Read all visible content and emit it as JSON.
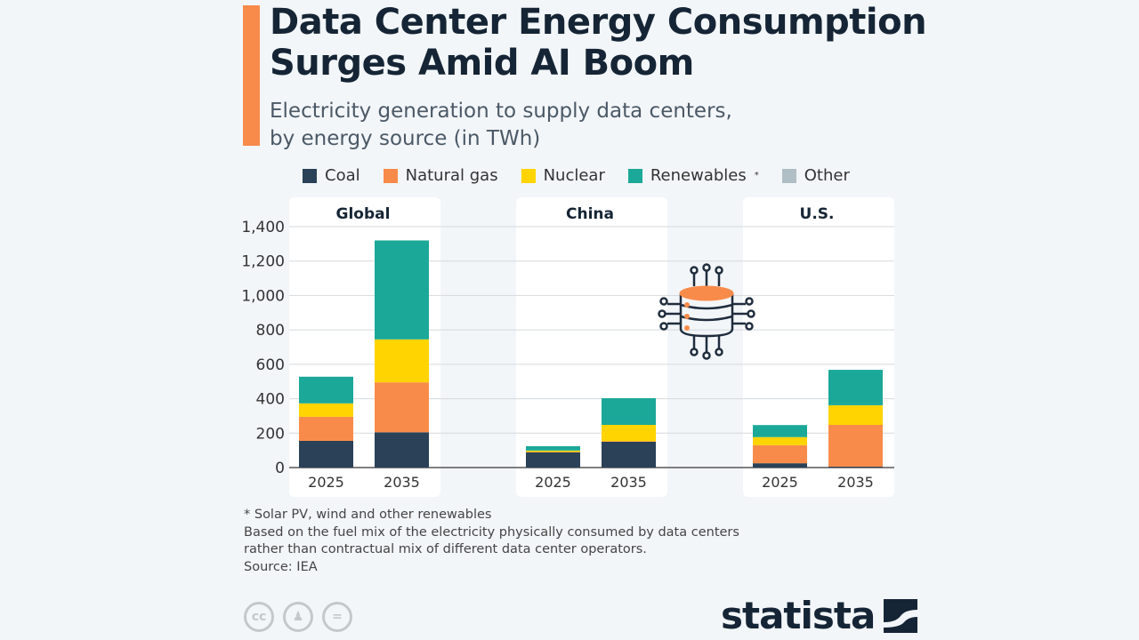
{
  "header": {
    "title_line1": "Data Center Energy Consumption",
    "title_line2": "Surges Amid AI Boom",
    "subtitle_line1": "Electricity generation to supply data centers,",
    "subtitle_line2": "by energy source (in TWh)"
  },
  "chart_data": {
    "type": "bar",
    "stacked": true,
    "title": "Data Center Energy Consumption Surges Amid AI Boom",
    "subtitle": "Electricity generation to supply data centers, by energy source (in TWh)",
    "ylabel": "TWh",
    "ylim": [
      0,
      1400
    ],
    "yticks": [
      0,
      200,
      400,
      600,
      800,
      1000,
      1200,
      1400
    ],
    "ytick_labels": [
      "0",
      "200",
      "400",
      "600",
      "800",
      "1,000",
      "1,200",
      "1,400"
    ],
    "grid": true,
    "legend_position": "top",
    "series_names": [
      "Coal",
      "Natural gas",
      "Nuclear",
      "Renewables",
      "Other"
    ],
    "series_colors": [
      "#2a4158",
      "#f98b4a",
      "#ffd400",
      "#1ba898",
      "#b0bec5"
    ],
    "legend_renewables_mark": "*",
    "panels": [
      {
        "name": "Global",
        "categories": [
          "2025",
          "2035"
        ],
        "series": [
          {
            "name": "Coal",
            "values": [
              155,
              205
            ]
          },
          {
            "name": "Natural gas",
            "values": [
              140,
              290
            ]
          },
          {
            "name": "Nuclear",
            "values": [
              78,
              250
            ]
          },
          {
            "name": "Renewables",
            "values": [
              155,
              575
            ]
          },
          {
            "name": "Other",
            "values": [
              0,
              0
            ]
          }
        ]
      },
      {
        "name": "China",
        "categories": [
          "2025",
          "2035"
        ],
        "series": [
          {
            "name": "Coal",
            "values": [
              88,
              150
            ]
          },
          {
            "name": "Natural gas",
            "values": [
              3,
              3
            ]
          },
          {
            "name": "Nuclear",
            "values": [
              8,
              95
            ]
          },
          {
            "name": "Renewables",
            "values": [
              25,
              155
            ]
          },
          {
            "name": "Other",
            "values": [
              0,
              0
            ]
          }
        ]
      },
      {
        "name": "U.S.",
        "categories": [
          "2025",
          "2035"
        ],
        "series": [
          {
            "name": "Coal",
            "values": [
              25,
              5
            ]
          },
          {
            "name": "Natural gas",
            "values": [
              105,
              243
            ]
          },
          {
            "name": "Nuclear",
            "values": [
              47,
              114
            ]
          },
          {
            "name": "Renewables",
            "values": [
              70,
              206
            ]
          },
          {
            "name": "Other",
            "values": [
              0,
              0
            ]
          }
        ]
      }
    ]
  },
  "notes": {
    "line1": "* Solar PV, wind and other renewables",
    "line2": "Based on the fuel mix of the electricity physically consumed by data centers",
    "line3": "rather than contractual mix of different data center operators.",
    "source": "Source: IEA"
  },
  "footer": {
    "logo_text": "statista",
    "license_icons": [
      "cc-icon",
      "by-icon",
      "nd-icon"
    ]
  }
}
